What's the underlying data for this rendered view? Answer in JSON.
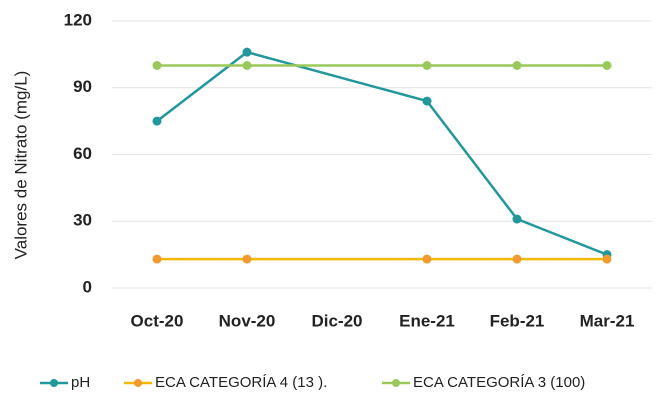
{
  "chart_data": {
    "type": "line",
    "y_label": "Valores  de Nitrato (mg/L)",
    "categories": [
      "Oct-20",
      "Nov-20",
      "Dic-20",
      "Ene-21",
      "Feb-21",
      "Mar-21"
    ],
    "series": [
      {
        "name": "pH",
        "color": "#22979c",
        "values": [
          75,
          106,
          null,
          84,
          31,
          15
        ]
      },
      {
        "name": "ECA CATEGORÍA 4 (13 ).",
        "color": "#f5b800",
        "marker_color": "#f09a30",
        "values": [
          13,
          13,
          null,
          13,
          13,
          13
        ]
      },
      {
        "name": "ECA CATEGORÍA 3 (100)",
        "color": "#9ac85a",
        "values": [
          100,
          100,
          null,
          100,
          100,
          100
        ]
      }
    ],
    "ylim": [
      0,
      120
    ],
    "yticks": [
      0,
      30,
      60,
      90,
      120
    ],
    "grid": true,
    "legend": "bottom"
  }
}
